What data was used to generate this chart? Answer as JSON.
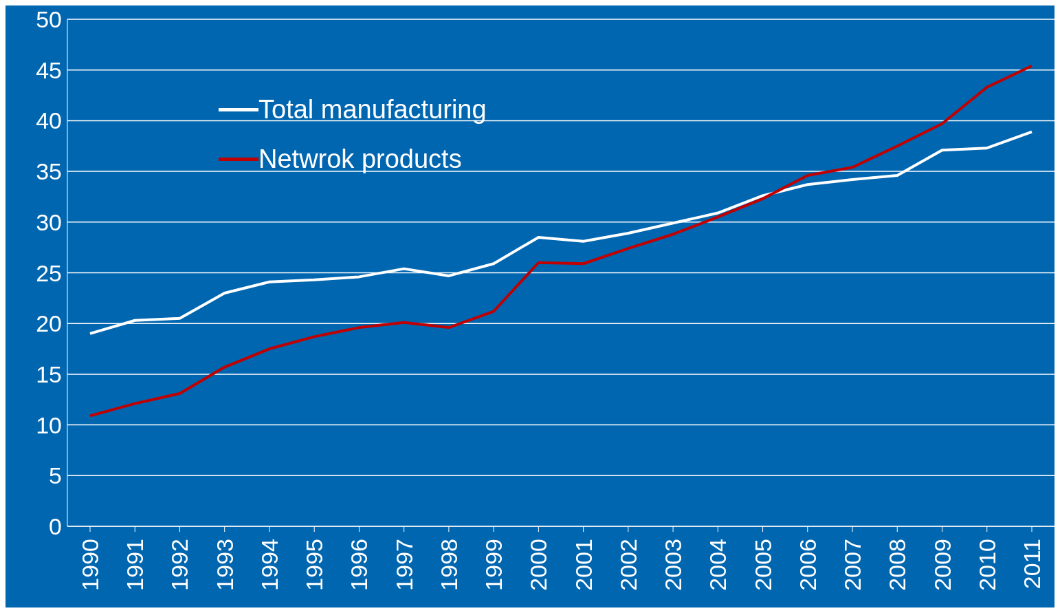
{
  "chart_data": {
    "type": "line",
    "categories": [
      "1990",
      "1991",
      "1992",
      "1993",
      "1994",
      "1995",
      "1996",
      "1997",
      "1998",
      "1999",
      "2000",
      "2001",
      "2002",
      "2003",
      "2004",
      "2005",
      "2006",
      "2007",
      "2008",
      "2009",
      "2010",
      "2011"
    ],
    "series": [
      {
        "name": "Total manufacturing",
        "color": "#ffffff",
        "values": [
          19.0,
          20.3,
          20.5,
          23.0,
          24.1,
          24.3,
          24.6,
          25.4,
          24.7,
          25.9,
          28.5,
          28.1,
          28.9,
          29.9,
          30.9,
          32.6,
          33.7,
          34.2,
          34.6,
          37.1,
          37.3,
          38.9
        ]
      },
      {
        "name": "Netwrok products",
        "color": "#c00000",
        "values": [
          10.9,
          12.1,
          13.1,
          15.7,
          17.5,
          18.7,
          19.6,
          20.1,
          19.6,
          21.2,
          26.0,
          25.9,
          27.4,
          28.8,
          30.5,
          32.3,
          34.6,
          35.4,
          37.5,
          39.7,
          43.3,
          45.4
        ]
      }
    ],
    "ylim": [
      0,
      50
    ],
    "yticks": [
      0,
      5,
      10,
      15,
      20,
      25,
      30,
      35,
      40,
      45,
      50
    ],
    "grid": "y",
    "legend": "top left",
    "marker": "none",
    "line_style": "solid"
  }
}
